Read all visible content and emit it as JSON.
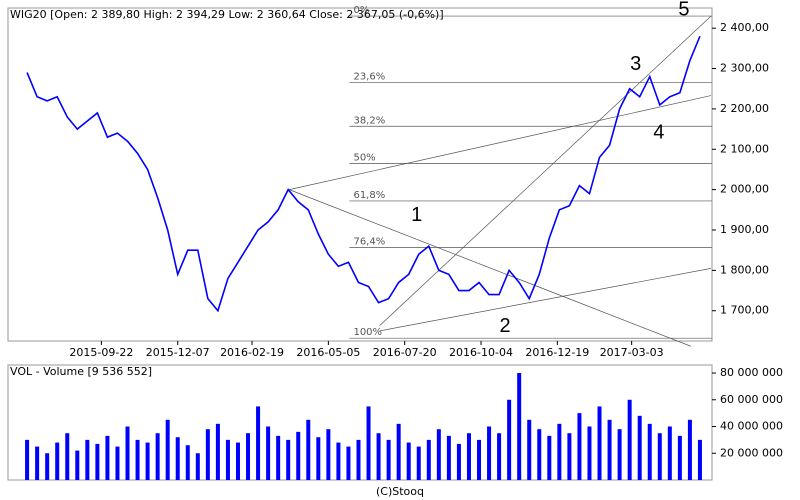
{
  "chart_data": [
    {
      "type": "line",
      "title": "WIG20 [Open: 2 389,80  High: 2 394,29  Low: 2 360,64  Close: 2 367,05 (-0,6%)]",
      "x": [
        "2015-07-10",
        "2015-07-20",
        "2015-07-30",
        "2015-08-09",
        "2015-08-19",
        "2015-08-29",
        "2015-09-08",
        "2015-09-18",
        "2015-09-28",
        "2015-10-08",
        "2015-10-18",
        "2015-10-28",
        "2015-11-07",
        "2015-11-17",
        "2015-11-27",
        "2015-12-07",
        "2015-12-17",
        "2015-12-27",
        "2016-01-06",
        "2016-01-16",
        "2016-01-26",
        "2016-02-05",
        "2016-02-15",
        "2016-02-25",
        "2016-03-06",
        "2016-03-16",
        "2016-03-26",
        "2016-04-05",
        "2016-04-15",
        "2016-04-25",
        "2016-05-05",
        "2016-05-15",
        "2016-05-25",
        "2016-06-04",
        "2016-06-14",
        "2016-06-24",
        "2016-07-04",
        "2016-07-14",
        "2016-07-24",
        "2016-08-03",
        "2016-08-13",
        "2016-08-23",
        "2016-09-02",
        "2016-09-12",
        "2016-09-22",
        "2016-10-02",
        "2016-10-12",
        "2016-10-22",
        "2016-11-01",
        "2016-11-11",
        "2016-11-21",
        "2016-12-01",
        "2016-12-11",
        "2016-12-21",
        "2016-12-31",
        "2017-01-10",
        "2017-01-20",
        "2017-01-30",
        "2017-02-09",
        "2017-02-19",
        "2017-03-01",
        "2017-03-11",
        "2017-03-21",
        "2017-03-31",
        "2017-04-10",
        "2017-04-20",
        "2017-04-30",
        "2017-05-10"
      ],
      "series": [
        {
          "name": "WIG20",
          "color": "#0000ff",
          "values": [
            2290,
            2230,
            2220,
            2230,
            2180,
            2150,
            2170,
            2190,
            2130,
            2140,
            2120,
            2090,
            2050,
            1980,
            1900,
            1790,
            1850,
            1850,
            1730,
            1700,
            1780,
            1820,
            1860,
            1900,
            1920,
            1950,
            2000,
            1970,
            1950,
            1890,
            1840,
            1810,
            1820,
            1770,
            1760,
            1720,
            1730,
            1770,
            1790,
            1840,
            1860,
            1800,
            1790,
            1750,
            1750,
            1770,
            1740,
            1740,
            1800,
            1770,
            1730,
            1790,
            1880,
            1950,
            1960,
            2010,
            1990,
            2080,
            2110,
            2200,
            2250,
            2230,
            2280,
            2210,
            2230,
            2240,
            2320,
            2380
          ]
        }
      ],
      "xlim": [
        "2015-06-21",
        "2017-05-22"
      ],
      "xticks": [
        "2015-09-22",
        "2015-12-07",
        "2016-02-19",
        "2016-05-05",
        "2016-07-20",
        "2016-10-04",
        "2016-12-19",
        "2017-03-03"
      ],
      "ylim": [
        1625,
        2450
      ],
      "yticks": [
        {
          "value": 1700,
          "label": "1 700,00"
        },
        {
          "value": 1800,
          "label": "1 800,00"
        },
        {
          "value": 1900,
          "label": "1 900,00"
        },
        {
          "value": 2000,
          "label": "2 000,00"
        },
        {
          "value": 2100,
          "label": "2 100,00"
        },
        {
          "value": 2200,
          "label": "2 200,00"
        },
        {
          "value": 2300,
          "label": "2 300,00"
        },
        {
          "value": 2400,
          "label": "2 400,00"
        }
      ],
      "fibonacci": {
        "from": "2016-05-26",
        "levels": [
          {
            "label": "0%",
            "value": 2430
          },
          {
            "label": "23,6%",
            "value": 2265
          },
          {
            "label": "38,2%",
            "value": 2157
          },
          {
            "label": "50%",
            "value": 2065
          },
          {
            "label": "61,8%",
            "value": 1972
          },
          {
            "label": "76,4%",
            "value": 1857
          },
          {
            "label": "100%",
            "value": 1632
          }
        ]
      },
      "trend_lines": [
        {
          "x": [
            "2016-03-27",
            "2017-05-01"
          ],
          "y": [
            2000,
            1612
          ]
        },
        {
          "x": [
            "2016-03-27",
            "2017-05-21"
          ],
          "y": [
            2000,
            2233
          ]
        },
        {
          "x": [
            "2016-06-25",
            "2017-05-21"
          ],
          "y": [
            1663,
            2430
          ]
        },
        {
          "x": [
            "2016-06-25",
            "2017-05-21"
          ],
          "y": [
            1650,
            1805
          ]
        }
      ],
      "wave_labels": [
        {
          "label": "1",
          "x": "2016-08-01",
          "y": 1935
        },
        {
          "label": "2",
          "x": "2016-10-28",
          "y": 1660
        },
        {
          "label": "3",
          "x": "2017-03-07",
          "y": 2310
        },
        {
          "label": "4",
          "x": "2017-03-30",
          "y": 2140
        },
        {
          "label": "5",
          "x": "2017-04-24",
          "y": 2445
        }
      ]
    },
    {
      "type": "bar",
      "title": "VOL - Volume [9 536 552]",
      "source": "(C)Stooq",
      "x": [
        "2015-07-10",
        "2015-07-20",
        "2015-07-30",
        "2015-08-09",
        "2015-08-19",
        "2015-08-29",
        "2015-09-08",
        "2015-09-18",
        "2015-09-28",
        "2015-10-08",
        "2015-10-18",
        "2015-10-28",
        "2015-11-07",
        "2015-11-17",
        "2015-11-27",
        "2015-12-07",
        "2015-12-17",
        "2015-12-27",
        "2016-01-06",
        "2016-01-16",
        "2016-01-26",
        "2016-02-05",
        "2016-02-15",
        "2016-02-25",
        "2016-03-06",
        "2016-03-16",
        "2016-03-26",
        "2016-04-05",
        "2016-04-15",
        "2016-04-25",
        "2016-05-05",
        "2016-05-15",
        "2016-05-25",
        "2016-06-04",
        "2016-06-14",
        "2016-06-24",
        "2016-07-04",
        "2016-07-14",
        "2016-07-24",
        "2016-08-03",
        "2016-08-13",
        "2016-08-23",
        "2016-09-02",
        "2016-09-12",
        "2016-09-22",
        "2016-10-02",
        "2016-10-12",
        "2016-10-22",
        "2016-11-01",
        "2016-11-11",
        "2016-11-21",
        "2016-12-01",
        "2016-12-11",
        "2016-12-21",
        "2016-12-31",
        "2017-01-10",
        "2017-01-20",
        "2017-01-30",
        "2017-02-09",
        "2017-02-19",
        "2017-03-01",
        "2017-03-11",
        "2017-03-21",
        "2017-03-31",
        "2017-04-10",
        "2017-04-20",
        "2017-04-30",
        "2017-05-10"
      ],
      "series": [
        {
          "name": "Volume",
          "color": "#0000ff",
          "values": [
            30000000,
            25000000,
            20000000,
            28000000,
            35000000,
            22000000,
            30000000,
            27000000,
            33000000,
            25000000,
            40000000,
            30000000,
            28000000,
            35000000,
            45000000,
            32000000,
            26000000,
            20000000,
            38000000,
            42000000,
            30000000,
            28000000,
            35000000,
            55000000,
            40000000,
            33000000,
            30000000,
            36000000,
            45000000,
            32000000,
            38000000,
            28000000,
            25000000,
            30000000,
            55000000,
            35000000,
            30000000,
            42000000,
            28000000,
            25000000,
            30000000,
            38000000,
            33000000,
            27000000,
            35000000,
            30000000,
            40000000,
            35000000,
            60000000,
            80000000,
            45000000,
            38000000,
            33000000,
            42000000,
            35000000,
            50000000,
            40000000,
            55000000,
            45000000,
            38000000,
            60000000,
            48000000,
            42000000,
            35000000,
            40000000,
            33000000,
            45000000,
            30000000
          ]
        }
      ],
      "xlim": [
        "2015-06-21",
        "2017-05-22"
      ],
      "ylim": [
        0,
        86000000
      ],
      "yticks": [
        {
          "value": 20000000,
          "label": "20 000 000"
        },
        {
          "value": 40000000,
          "label": "40 000 000"
        },
        {
          "value": 60000000,
          "label": "60 000 000"
        },
        {
          "value": 80000000,
          "label": "80 000 000"
        }
      ]
    }
  ]
}
